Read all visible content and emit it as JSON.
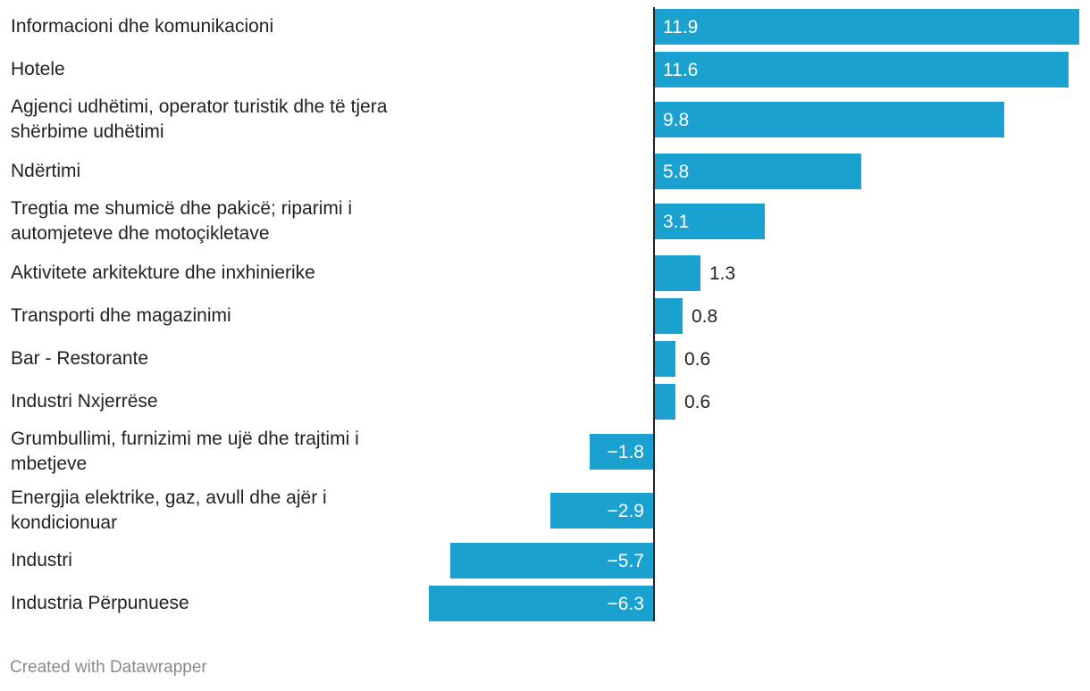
{
  "chart_data": {
    "type": "bar",
    "orientation": "horizontal",
    "title": "",
    "xlabel": "",
    "ylabel": "",
    "categories": [
      "Informacioni dhe komunikacioni",
      "Hotele",
      "Agjenci udhëtimi, operator turistik dhe të tjera shërbime udhëtimi",
      "Ndërtimi",
      "Tregtia me shumicë dhe pakicë; riparimi i automjeteve dhe motoçikletave",
      "Aktivitete arkitekture dhe inxhinierike",
      "Transporti dhe magazinimi",
      "Bar - Restorante",
      "Industri Nxjerrëse",
      "Grumbullimi, furnizimi me ujë dhe trajtimi i mbetjeve",
      "Energjia elektrike, gaz, avull dhe ajër i kondicionuar",
      "Industri",
      "Industria Përpunuese"
    ],
    "values": [
      11.9,
      11.6,
      9.8,
      5.8,
      3.1,
      1.3,
      0.8,
      0.6,
      0.6,
      -1.8,
      -2.9,
      -5.7,
      -6.3
    ],
    "value_labels": [
      "11.9",
      "11.6",
      "9.8",
      "5.8",
      "3.1",
      "1.3",
      "0.8",
      "0.6",
      "0.6",
      "−1.8",
      "−2.9",
      "−5.7",
      "−6.3"
    ],
    "xlim": [
      -6.3,
      11.9
    ],
    "grid": false,
    "legend": "none",
    "colors": {
      "bar": "#1aa1d0",
      "axis": "#222222",
      "label_inside": "#ffffff",
      "label_outside": "#222222"
    }
  },
  "footer": {
    "credit": "Created with Datawrapper"
  }
}
